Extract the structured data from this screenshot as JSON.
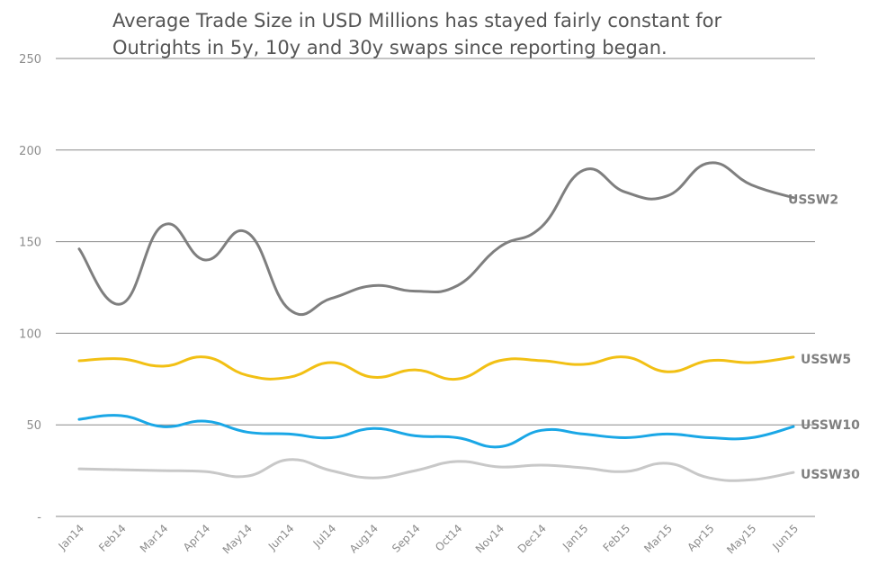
{
  "chart_data": {
    "type": "line",
    "title": "Average Trade Size in USD Millions has stayed fairly constant for Outrights in 5y, 10y and 30y swaps since reporting began.",
    "xlabel": "",
    "ylabel": "",
    "categories": [
      "Jan14",
      "Feb14",
      "Mar14",
      "Apr14",
      "May14",
      "Jun14",
      "Jul14",
      "Aug14",
      "Sep14",
      "Oct14",
      "Nov14",
      "Dec14",
      "Jan15",
      "Feb15",
      "Mar15",
      "Apr15",
      "May15",
      "Jun15"
    ],
    "y_ticks": [
      "-",
      "50",
      "100",
      "150",
      "200",
      "250"
    ],
    "ylim": [
      0,
      250
    ],
    "grid": true,
    "legend": "end-of-line labels",
    "series": [
      {
        "name": "USSW2",
        "color": "#7f7f7f",
        "values": [
          146,
          116,
          159,
          140,
          155,
          113,
          119,
          126,
          123,
          126,
          147,
          158,
          189,
          177,
          175,
          193,
          181,
          174
        ]
      },
      {
        "name": "USSW5",
        "color": "#f2c014",
        "values": [
          85,
          86,
          82,
          87,
          77,
          76,
          84,
          76,
          80,
          75,
          85,
          85,
          83,
          87,
          79,
          85,
          84,
          87
        ]
      },
      {
        "name": "USSW10",
        "color": "#1aa7e6",
        "values": [
          53,
          55,
          49,
          52,
          46,
          45,
          43,
          48,
          44,
          43,
          38,
          47,
          45,
          43,
          45,
          43,
          43,
          49
        ]
      },
      {
        "name": "USSW30",
        "color": "#c8c8c8",
        "values": [
          26,
          25.5,
          25,
          24.5,
          22,
          31,
          25,
          21,
          25,
          30,
          27,
          28,
          26.5,
          24.5,
          29,
          21,
          20,
          24
        ]
      }
    ]
  }
}
